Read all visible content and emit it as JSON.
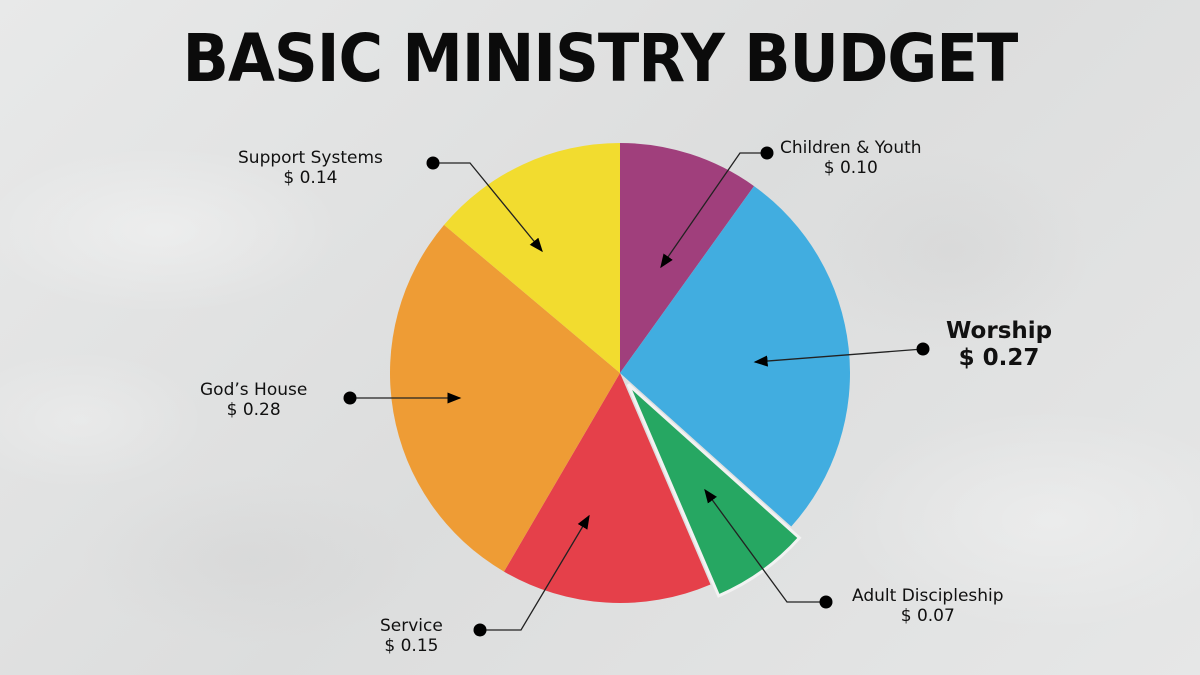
{
  "title": "BASIC MINISTRY BUDGET",
  "chart_data": {
    "type": "pie",
    "title": "BASIC MINISTRY BUDGET",
    "unit": "$",
    "start_angle_deg": 0,
    "direction": "clockwise",
    "categories": [
      "Children & Youth",
      "Worship",
      "Adult Discipleship",
      "Service",
      "God's House",
      "Support Systems"
    ],
    "values": [
      0.1,
      0.27,
      0.07,
      0.15,
      0.28,
      0.14
    ],
    "colors": [
      "#a03f7c",
      "#41ade0",
      "#26a762",
      "#e5404a",
      "#ee9c35",
      "#f2dc2f"
    ],
    "exploded": [
      "Adult Discipleship"
    ],
    "highlighted": [
      "Worship"
    ],
    "labels": [
      {
        "name": "Children & Youth",
        "value_text": "$ 0.10"
      },
      {
        "name": "Worship",
        "value_text": "$ 0.27"
      },
      {
        "name": "Adult Discipleship",
        "value_text": "$ 0.07"
      },
      {
        "name": "Service",
        "value_text": "$ 0.15"
      },
      {
        "name": "God’s House",
        "value_text": "$ 0.28"
      },
      {
        "name": "Support Systems",
        "value_text": "$ 0.14"
      }
    ]
  }
}
